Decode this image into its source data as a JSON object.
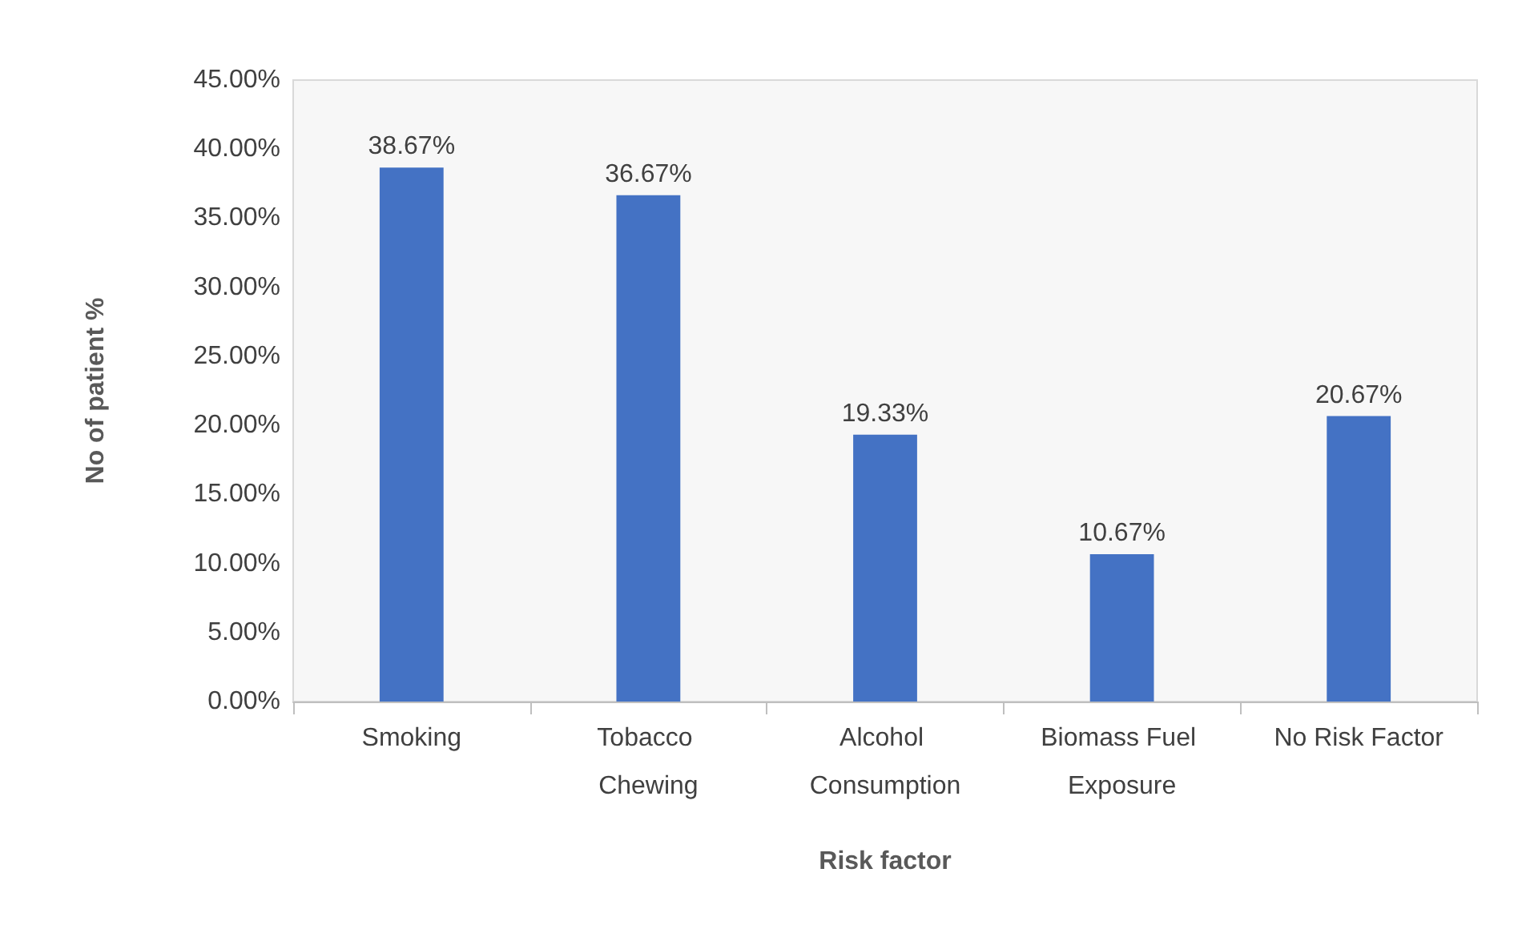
{
  "chart_data": {
    "type": "bar",
    "xlabel": "Risk factor",
    "ylabel": "No of patient %",
    "categories": [
      "Smoking",
      "Tobacco Chewing",
      "Alcohol Consumption",
      "Biomass Fuel Exposure",
      "No Risk Factor"
    ],
    "values": [
      38.67,
      36.67,
      19.33,
      10.67,
      20.67
    ],
    "value_labels": [
      "38.67%",
      "36.67%",
      "19.33%",
      "10.67%",
      "20.67%"
    ],
    "color": "#4472c4",
    "ylim": [
      0,
      45
    ],
    "yticks": [
      {
        "value": 0,
        "label": "0.00%"
      },
      {
        "value": 5,
        "label": "5.00%"
      },
      {
        "value": 10,
        "label": "10.00%"
      },
      {
        "value": 15,
        "label": "15.00%"
      },
      {
        "value": 20,
        "label": "20.00%"
      },
      {
        "value": 25,
        "label": "25.00%"
      },
      {
        "value": 30,
        "label": "30.00%"
      },
      {
        "value": 35,
        "label": "35.00%"
      },
      {
        "value": 40,
        "label": "40.00%"
      },
      {
        "value": 45,
        "label": "45.00%"
      }
    ],
    "grid": false
  }
}
